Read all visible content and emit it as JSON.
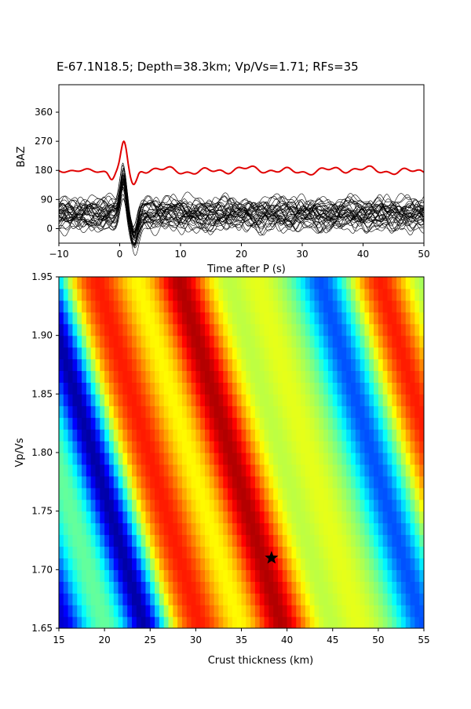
{
  "title": "E-67.1N18.5; Depth=38.3km; Vp/Vs=1.71; RFs=35",
  "chart_data": [
    {
      "type": "line",
      "name": "receiver-function-traces",
      "xlabel": "Time after P (s)",
      "ylabel": "BAZ",
      "xlim": [
        -10,
        50
      ],
      "ylim": [
        -45,
        445
      ],
      "xticks": [
        -10,
        0,
        10,
        20,
        30,
        40,
        50
      ],
      "yticks": [
        0,
        90,
        180,
        270,
        360
      ],
      "trace_count": 35,
      "trace_color": "#000000",
      "stack_color": "#e00000",
      "stack_baseline": 180,
      "stack_peak": {
        "x": 0.7,
        "y": 265
      },
      "trace_baseline_range": [
        0,
        90
      ],
      "trace_peak_time": 0.6
    },
    {
      "type": "heatmap",
      "name": "h-kappa-grid",
      "xlabel": "Crust thickness (km)",
      "ylabel": "Vp/Vs",
      "xlim": [
        15,
        55
      ],
      "ylim": [
        1.65,
        1.95
      ],
      "xticks": [
        15,
        20,
        25,
        30,
        35,
        40,
        45,
        50,
        55
      ],
      "yticks": [
        1.65,
        1.7,
        1.75,
        1.8,
        1.85,
        1.9,
        1.95
      ],
      "colormap": "jet",
      "best": {
        "h": 38.3,
        "k": 1.71
      }
    }
  ]
}
